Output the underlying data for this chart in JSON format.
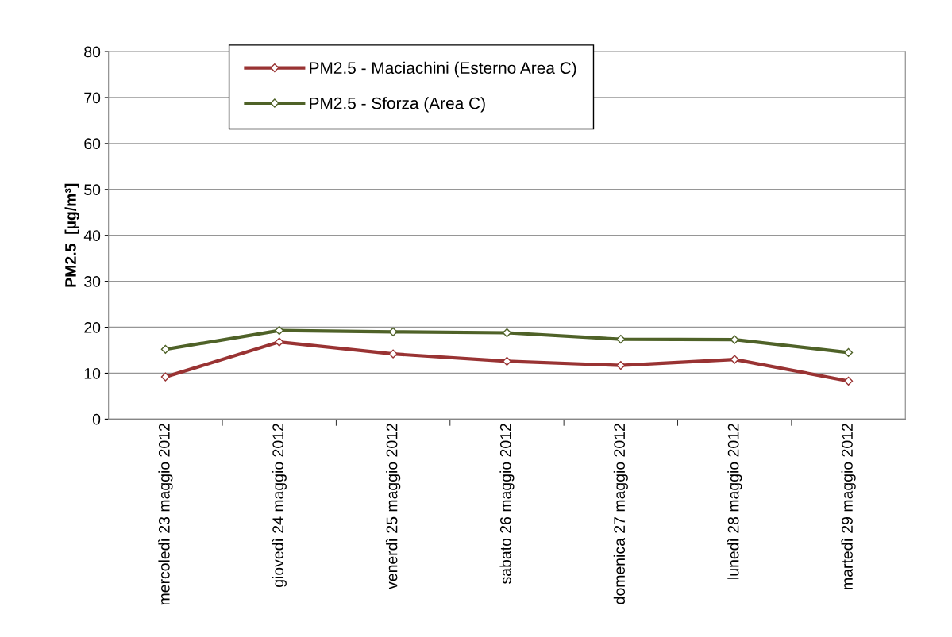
{
  "chart_data": {
    "type": "line",
    "ylabel": "PM2.5  [µg/m³]",
    "categories": [
      "mercoledì 23 maggio 2012",
      "giovedì 24 maggio 2012",
      "venerdì 25 maggio 2012",
      "sabato 26 maggio 2012",
      "domenica 27 maggio 2012",
      "lunedì 28 maggio 2012",
      "martedì 29 maggio 2012"
    ],
    "series": [
      {
        "name": "PM2.5 - Maciachini (Esterno Area C)",
        "color": "#993333",
        "values": [
          9.2,
          16.8,
          14.2,
          12.6,
          11.7,
          13.0,
          8.3
        ]
      },
      {
        "name": "PM2.5 - Sforza (Area C)",
        "color": "#4f6228",
        "values": [
          15.2,
          19.3,
          19.0,
          18.8,
          17.4,
          17.3,
          14.5
        ]
      }
    ],
    "ylim": [
      0,
      80
    ],
    "yticks": [
      0,
      10,
      20,
      30,
      40,
      50,
      60,
      70,
      80
    ],
    "grid": "y",
    "legend": "top",
    "marker": "diamond",
    "line_style": "solid"
  }
}
